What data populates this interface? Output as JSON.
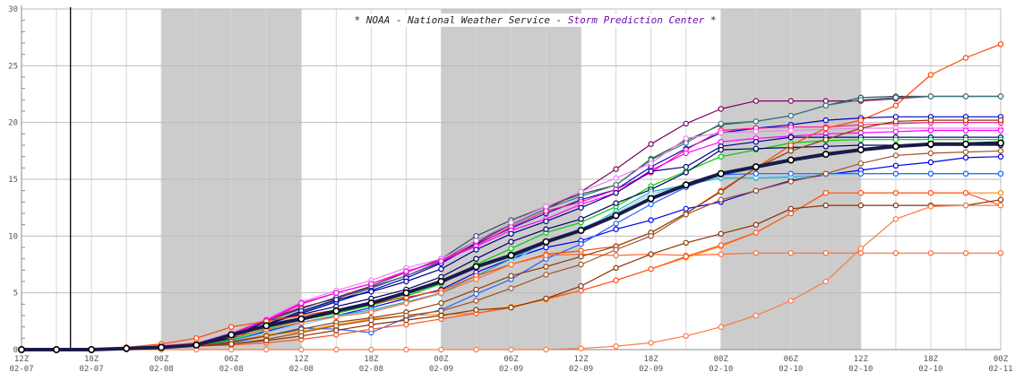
{
  "chart_data": {
    "type": "line",
    "title": {
      "prefix": "* NOAA - National Weather Service - ",
      "highlight": "Storm Prediction Center",
      "suffix": " *",
      "highlight_color": "#6a0dad"
    },
    "xlabel": "",
    "ylabel": "",
    "ylim": [
      0,
      30
    ],
    "yticks": [
      0,
      5,
      10,
      15,
      20,
      25,
      30
    ],
    "xlim": [
      0,
      84
    ],
    "x_step_hours": 3,
    "xticks": [
      {
        "x": 0,
        "label": [
          "12Z",
          "02-07"
        ]
      },
      {
        "x": 6,
        "label": [
          "18Z",
          "02-07"
        ]
      },
      {
        "x": 12,
        "label": [
          "00Z",
          "02-08"
        ]
      },
      {
        "x": 18,
        "label": [
          "06Z",
          "02-08"
        ]
      },
      {
        "x": 24,
        "label": [
          "12Z",
          "02-08"
        ]
      },
      {
        "x": 30,
        "label": [
          "18Z",
          "02-08"
        ]
      },
      {
        "x": 36,
        "label": [
          "00Z",
          "02-09"
        ]
      },
      {
        "x": 42,
        "label": [
          "06Z",
          "02-09"
        ]
      },
      {
        "x": 48,
        "label": [
          "12Z",
          "02-09"
        ]
      },
      {
        "x": 54,
        "label": [
          "18Z",
          "02-09"
        ]
      },
      {
        "x": 60,
        "label": [
          "00Z",
          "02-10"
        ]
      },
      {
        "x": 66,
        "label": [
          "06Z",
          "02-10"
        ]
      },
      {
        "x": 72,
        "label": [
          "12Z",
          "02-10"
        ]
      },
      {
        "x": 78,
        "label": [
          "18Z",
          "02-10"
        ]
      },
      {
        "x": 84,
        "label": [
          "00Z",
          "02-11"
        ]
      }
    ],
    "night_bands": [
      [
        12,
        24
      ],
      [
        36,
        48
      ],
      [
        60,
        72
      ]
    ],
    "grid": true,
    "legend": "none",
    "vline_x": 4.2,
    "series": [
      {
        "color": "#1a1a4a",
        "mean": true,
        "values": [
          0,
          0,
          0,
          0.1,
          0.2,
          0.4,
          1.3,
          2.1,
          2.7,
          3.4,
          4.1,
          5,
          6,
          7.3,
          8.3,
          9.5,
          10.5,
          11.8,
          13.3,
          14.5,
          15.5,
          16.1,
          16.7,
          17.2,
          17.6,
          17.9,
          18.1,
          18.1,
          18.2
        ]
      },
      {
        "color": "#800060",
        "values": [
          0,
          0,
          0,
          0.2,
          0.4,
          0.5,
          1.4,
          2.6,
          3.7,
          4.5,
          5.5,
          6.5,
          7.7,
          9.4,
          11,
          12.4,
          13.9,
          15.9,
          18.1,
          19.9,
          21.2,
          21.9,
          21.9,
          21.9,
          21.9,
          22.1,
          22.3,
          22.3,
          22.3
        ]
      },
      {
        "color": "#2f4f4f",
        "values": [
          0,
          0,
          0,
          0.1,
          0.2,
          0.4,
          1.2,
          2.5,
          3.6,
          4.6,
          5.6,
          6.8,
          8,
          10,
          11.4,
          12.6,
          13.7,
          14.5,
          16.8,
          18.4,
          19.8,
          20.1,
          20.6,
          21.5,
          22.2,
          22.3,
          22.3,
          22.3,
          22.3
        ]
      },
      {
        "color": "#3a7a7a",
        "values": [
          0,
          0,
          0,
          0.1,
          0.2,
          0.3,
          1.1,
          2.3,
          3.3,
          4.3,
          5.4,
          6.5,
          7.8,
          9.6,
          11,
          12.4,
          13.5,
          14.5,
          16.7,
          18.2,
          19.9,
          20.1,
          20.6,
          21.5,
          22,
          22.2,
          22.3,
          22.3,
          22.3
        ]
      },
      {
        "color": "#0000cc",
        "values": [
          0,
          0,
          0,
          0.1,
          0.2,
          0.3,
          1,
          2.2,
          3.2,
          4.2,
          5.2,
          6.3,
          7.6,
          9.3,
          10.7,
          12,
          13.2,
          14.1,
          16.1,
          17.7,
          19.1,
          19.5,
          19.8,
          20.2,
          20.4,
          20.5,
          20.5,
          20.5,
          20.5
        ]
      },
      {
        "color": "#ff1493",
        "values": [
          0,
          0,
          0,
          0.2,
          0.3,
          0.5,
          1.4,
          2.5,
          4,
          5,
          5.8,
          6.8,
          7.9,
          9.2,
          10.8,
          12.2,
          13,
          14.1,
          15.6,
          17.6,
          19.3,
          19.5,
          19.6,
          19.6,
          19.8,
          19.9,
          20,
          20,
          20
        ]
      },
      {
        "color": "#ee82ee",
        "values": [
          0,
          0,
          0,
          0.2,
          0.4,
          0.6,
          1.5,
          2.7,
          4.2,
          5.2,
          6.1,
          7.2,
          8,
          9.6,
          11.2,
          12.6,
          13.9,
          15.1,
          16.4,
          18.6,
          19.1,
          19.2,
          19.3,
          19.4,
          19.5,
          19.5,
          19.5,
          19.5,
          19.5
        ]
      },
      {
        "color": "#ff00ff",
        "values": [
          0,
          0,
          0,
          0.2,
          0.3,
          0.5,
          1.3,
          2.6,
          4.1,
          5,
          5.8,
          6.9,
          7.8,
          9.1,
          10.5,
          11.5,
          12.8,
          13.8,
          15.8,
          17.3,
          18.3,
          18.6,
          18.8,
          19,
          19.1,
          19.2,
          19.3,
          19.3,
          19.3
        ]
      },
      {
        "color": "#00008b",
        "values": [
          0,
          0,
          0,
          0.1,
          0.2,
          0.3,
          1,
          2.2,
          3.4,
          4.4,
          5.1,
          6,
          7.1,
          8.8,
          10.2,
          11.3,
          12.5,
          13.8,
          15.7,
          16.1,
          17.9,
          18.3,
          18.7,
          18.7,
          18.7,
          18.7,
          18.7,
          18.7,
          18.7
        ]
      },
      {
        "color": "#00cc00",
        "values": [
          0,
          0,
          0,
          0.1,
          0.2,
          0.3,
          0.9,
          1.9,
          2.6,
          3.2,
          3.9,
          4.7,
          5.8,
          7.5,
          8.9,
          10.3,
          11.2,
          12.6,
          14.4,
          15.7,
          17,
          17.6,
          18.2,
          18.4,
          18.5,
          18.5,
          18.5,
          18.5,
          18.5
        ]
      },
      {
        "color": "#000066",
        "values": [
          0,
          0,
          0,
          0.1,
          0.2,
          0.3,
          1.1,
          2.5,
          3.1,
          3.8,
          4.5,
          5.3,
          6.4,
          8,
          9.5,
          10.6,
          11.5,
          12.9,
          14.1,
          15.6,
          17.6,
          17.7,
          17.8,
          17.9,
          18,
          18,
          18,
          18,
          18
        ]
      },
      {
        "color": "#0000ee",
        "values": [
          0,
          0,
          0,
          0.1,
          0.2,
          0.3,
          0.8,
          1.6,
          2.4,
          3,
          3.7,
          4.5,
          5.3,
          6.8,
          8,
          9,
          9.6,
          10.6,
          11.4,
          12.4,
          13,
          14,
          14.9,
          15.4,
          15.8,
          16.2,
          16.5,
          16.9,
          17
        ]
      },
      {
        "color": "#20b2aa",
        "values": [
          0,
          0,
          0,
          0.1,
          0.2,
          0.3,
          0.8,
          1.7,
          2.4,
          3,
          3.5,
          4.2,
          5,
          6.5,
          8,
          9.4,
          10.5,
          12.2,
          13.9,
          14.5,
          15.1,
          15.1,
          15.2,
          15.4,
          15.5,
          15.5,
          15.5,
          15.5,
          15.5
        ]
      },
      {
        "color": "#87cefa",
        "values": [
          0,
          0,
          0,
          0.1,
          0.2,
          0.3,
          0.7,
          1.5,
          2.2,
          2.9,
          3.4,
          4.1,
          4.9,
          6.3,
          7.7,
          9.5,
          10.7,
          12,
          13.7,
          14.5,
          15.2,
          15.2,
          15.3,
          15.4,
          15.5,
          15.5,
          15.5,
          15.5,
          15.5
        ]
      },
      {
        "color": "#1e60ff",
        "values": [
          0,
          0,
          0,
          0.1,
          0.2,
          0.3,
          0.6,
          1.2,
          1.9,
          1.8,
          1.5,
          2.8,
          3.5,
          4.9,
          6.2,
          8,
          9.3,
          11.1,
          12.8,
          14.3,
          15.4,
          15.5,
          15.5,
          15.5,
          15.5,
          15.5,
          15.5,
          15.5,
          15.5
        ]
      },
      {
        "color": "#ff4500",
        "values": [
          0,
          0,
          0,
          0.2,
          0.5,
          1,
          2,
          2.5,
          3,
          3.5,
          4,
          4.6,
          5.2,
          6.5,
          7.5,
          8.4,
          8.7,
          9.1,
          10.3,
          12,
          14,
          16,
          18,
          19.5,
          20.2,
          21.5,
          24.2,
          25.7,
          26.9
        ]
      },
      {
        "color": "#ff6a33",
        "values": [
          0,
          0,
          0,
          0.1,
          0.3,
          0.6,
          1.1,
          1.8,
          2.4,
          2.9,
          3.3,
          4.1,
          5,
          6.2,
          7.5,
          8.3,
          8.4,
          8.3,
          8.4,
          8.3,
          8.4,
          8.5,
          8.5,
          8.5,
          8.5,
          8.5,
          8.5,
          8.5,
          8.5
        ]
      },
      {
        "color": "#ff8c00",
        "values": [
          0,
          0,
          0,
          0.1,
          0.2,
          0.3,
          0.7,
          1.3,
          1.6,
          2.2,
          2.7,
          3,
          3.1,
          3.2,
          3.8,
          4.4,
          5.2,
          6.1,
          7.1,
          8.1,
          9.1,
          10.3,
          12,
          13.8,
          13.8,
          13.8,
          13.8,
          13.8,
          13.8
        ]
      },
      {
        "color": "#8b4000",
        "values": [
          0,
          0,
          0,
          0.1,
          0.2,
          0.3,
          0.7,
          1.2,
          1.8,
          2.4,
          2.8,
          3.3,
          4.1,
          5.3,
          6.5,
          7.3,
          8.2,
          9.1,
          10.3,
          12,
          13.9,
          16,
          17.5,
          18.5,
          19.5,
          20.1,
          20.2,
          20.2,
          20.2
        ]
      },
      {
        "color": "#a0522d",
        "values": [
          0,
          0,
          0,
          0.1,
          0.2,
          0.3,
          0.5,
          0.9,
          1.5,
          2.1,
          2.6,
          3,
          3.4,
          4.3,
          5.4,
          6.6,
          7.5,
          8.8,
          10,
          11.9,
          13.2,
          14,
          14.8,
          15.5,
          16.4,
          17.1,
          17.3,
          17.4,
          17.5
        ]
      },
      {
        "color": "#ff5522",
        "values": [
          0,
          0,
          0,
          0.1,
          0.2,
          0.3,
          0.4,
          0.6,
          0.9,
          1.3,
          1.8,
          2.2,
          2.7,
          3.2,
          3.7,
          4.5,
          5.2,
          6.1,
          7.1,
          8.2,
          9.2,
          10.3,
          12,
          13.8,
          13.8,
          13.8,
          13.8,
          13.8,
          12.7
        ]
      },
      {
        "color": "#8b3300",
        "values": [
          0,
          0,
          0,
          0.1,
          0.2,
          0.3,
          0.5,
          0.8,
          1.2,
          1.7,
          2.2,
          2.6,
          3,
          3.5,
          3.7,
          4.5,
          5.6,
          7.2,
          8.4,
          9.4,
          10.2,
          11,
          12.4,
          12.7,
          12.7,
          12.7,
          12.7,
          12.7,
          13.2
        ]
      },
      {
        "color": "#ff7744",
        "values": [
          0,
          0,
          0,
          0,
          0,
          0,
          0,
          0,
          0,
          0,
          0,
          0,
          0,
          0,
          0,
          0,
          0.1,
          0.3,
          0.6,
          1.2,
          2,
          3,
          4.3,
          6,
          8.9,
          11.5,
          12.6,
          12.7,
          12.7
        ]
      }
    ]
  }
}
